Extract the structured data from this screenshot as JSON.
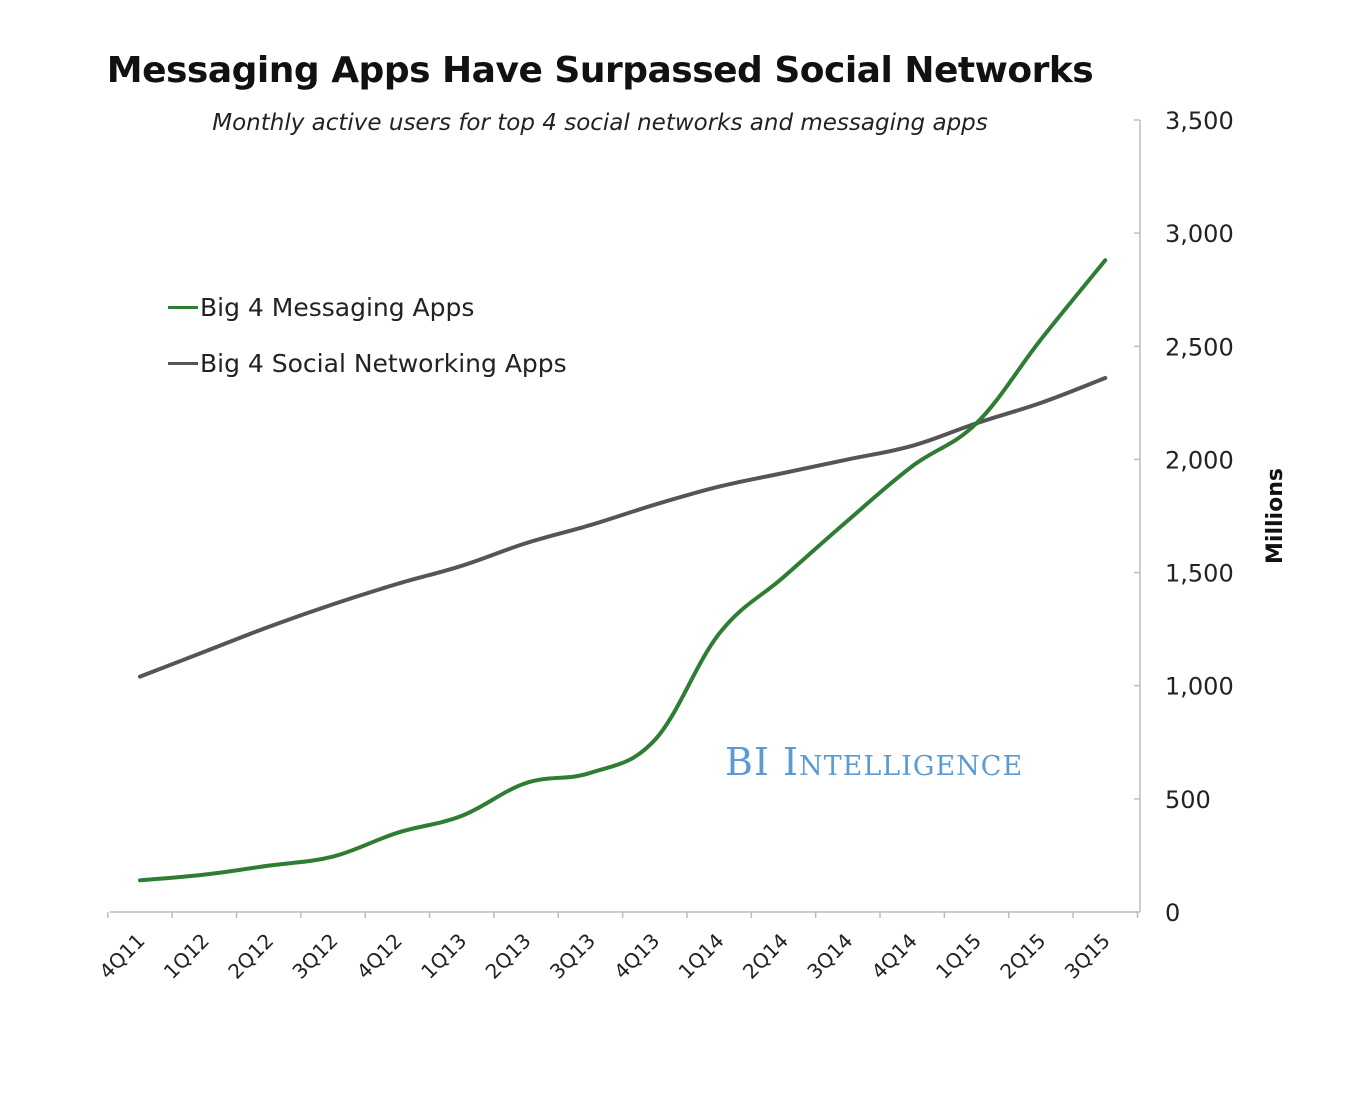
{
  "chart_data": {
    "type": "line",
    "title": "Messaging Apps Have Surpassed Social Networks",
    "subtitle": "Monthly active users for top 4 social networks and messaging apps",
    "xlabel": "",
    "ylabel": "Millions",
    "x": [
      "4Q11",
      "1Q12",
      "2Q12",
      "3Q12",
      "4Q12",
      "1Q13",
      "2Q13",
      "3Q13",
      "4Q13",
      "1Q14",
      "2Q14",
      "3Q14",
      "4Q14",
      "1Q15",
      "2Q15",
      "3Q15"
    ],
    "series": [
      {
        "name": "Big 4 Messaging Apps",
        "color": "#2e7d32",
        "values": [
          140,
          165,
          205,
          245,
          350,
          425,
          570,
          615,
          760,
          1230,
          1480,
          1730,
          1970,
          2160,
          2530,
          2880
        ]
      },
      {
        "name": "Big 4 Social Networking Apps",
        "color": "#555555",
        "values": [
          1040,
          1150,
          1260,
          1360,
          1450,
          1530,
          1630,
          1710,
          1800,
          1880,
          1940,
          2000,
          2060,
          2160,
          2250,
          2360
        ]
      }
    ],
    "ylim": [
      0,
      3500
    ],
    "yticks": [
      0,
      500,
      1000,
      1500,
      2000,
      2500,
      3000,
      3500
    ],
    "yticklabels": [
      "0",
      "500",
      "1,000",
      "1,500",
      "2,000",
      "2,500",
      "3,000",
      "3,500"
    ],
    "grid": false,
    "legend": "top-left",
    "yaxis_side": "right"
  },
  "watermark": "BI Intelligence"
}
